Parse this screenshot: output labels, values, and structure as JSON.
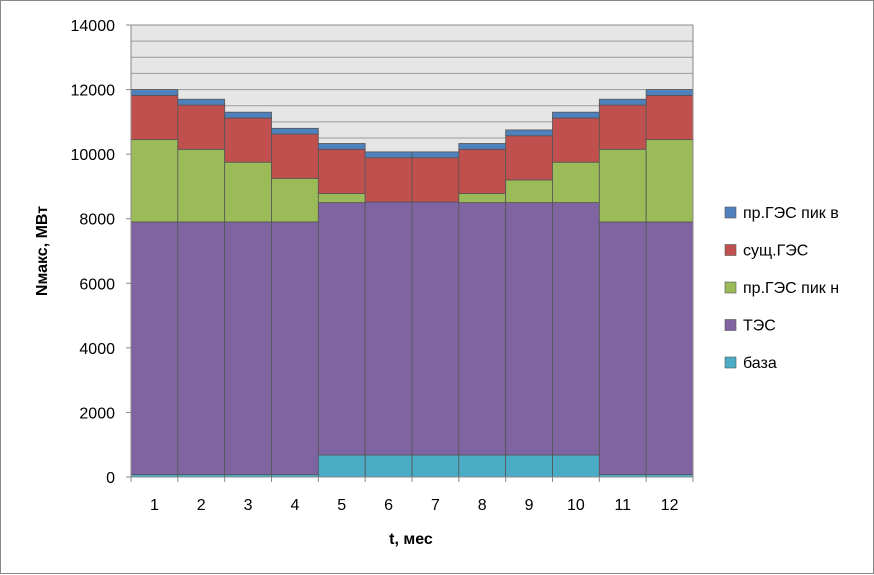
{
  "chart_data": {
    "type": "bar",
    "stacked": true,
    "xlabel": "t, мес",
    "ylabel": "Nмакс, МВт",
    "ylim": [
      0,
      14000
    ],
    "yticks": [
      0,
      2000,
      4000,
      6000,
      8000,
      10000,
      12000,
      14000
    ],
    "grid": "horizontal",
    "legend_position": "right",
    "categories": [
      "1",
      "2",
      "3",
      "4",
      "5",
      "6",
      "7",
      "8",
      "9",
      "10",
      "11",
      "12"
    ],
    "series": [
      {
        "name": "база",
        "color": "#4BACC6",
        "values": [
          80,
          80,
          80,
          80,
          680,
          680,
          680,
          680,
          680,
          680,
          80,
          80
        ]
      },
      {
        "name": "ТЭС",
        "color": "#8064A2",
        "values": [
          7820,
          7820,
          7820,
          7820,
          7820,
          7840,
          7840,
          7820,
          7820,
          7820,
          7820,
          7820
        ]
      },
      {
        "name": "пр.ГЭС пик н",
        "color": "#9BBB59",
        "values": [
          2550,
          2250,
          1850,
          1350,
          280,
          0,
          0,
          280,
          700,
          1250,
          2250,
          2550
        ]
      },
      {
        "name": "сущ.ГЭС",
        "color": "#C0504D",
        "values": [
          1370,
          1370,
          1370,
          1370,
          1370,
          1370,
          1370,
          1370,
          1370,
          1370,
          1370,
          1370
        ]
      },
      {
        "name": "пр.ГЭС пик в",
        "color": "#4F81BD",
        "values": [
          180,
          180,
          180,
          180,
          180,
          180,
          180,
          180,
          180,
          180,
          180,
          180
        ]
      }
    ]
  }
}
